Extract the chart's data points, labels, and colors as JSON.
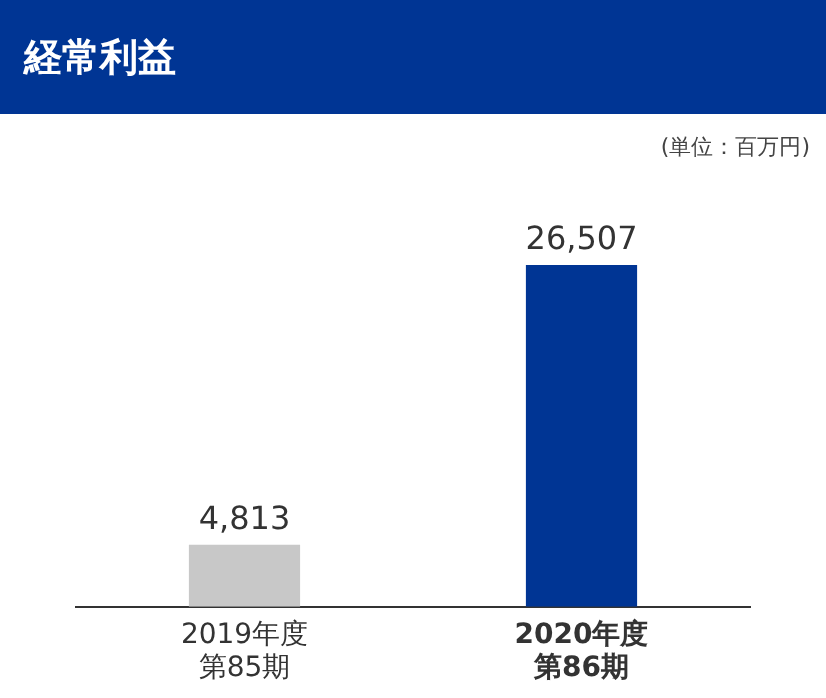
{
  "chart_data": {
    "type": "bar",
    "title": "経常利益",
    "annotations": [
      "(単位：百万円)"
    ],
    "categories": [
      "2019年度第85期",
      "2020年度第86期"
    ],
    "values": [
      4813,
      26507
    ],
    "colors": [
      "#c8c8c8",
      "#003594"
    ],
    "value_labels": [
      "4,813",
      "26,507"
    ],
    "grid": false,
    "legend": false
  }
}
